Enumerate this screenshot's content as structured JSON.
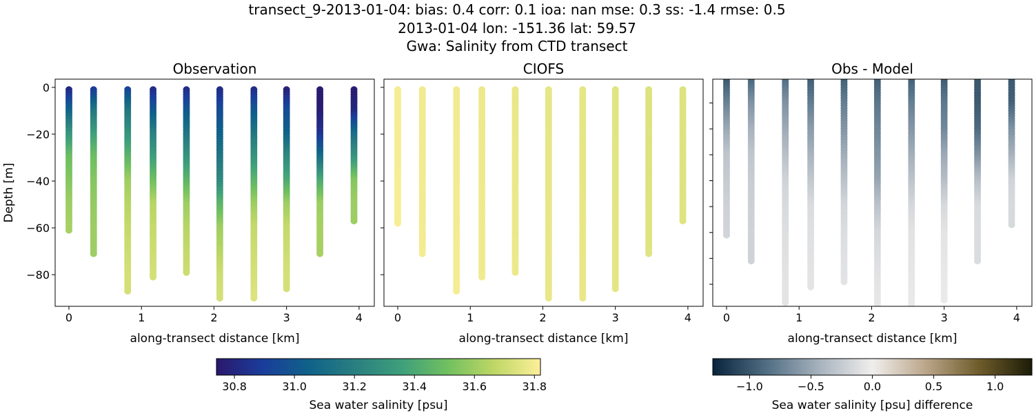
{
  "title_lines": [
    "transect_9-2013-01-04: bias: 0.4  corr: 0.1  ioa: nan  mse: 0.3  ss: -1.4  rmse: 0.5",
    "2013-01-04 lon: -151.36 lat: 59.57",
    "Gwa: Salinity from CTD transect"
  ],
  "chart_data": [
    {
      "type": "scatter",
      "title": "Observation",
      "xlabel": "along-transect distance [km]",
      "ylabel": "Depth [m]",
      "xlim": [
        -0.19,
        4.21
      ],
      "ylim": [
        -93.5,
        3.5
      ],
      "xticks": [
        0,
        1,
        2,
        3,
        4
      ],
      "yticks": [
        0,
        -20,
        -40,
        -60,
        -80
      ],
      "show_yticklabels": true,
      "colormap": "haline",
      "value_key": "obs",
      "profile_depths": [
        0,
        10,
        20,
        30,
        40,
        50,
        60,
        70,
        80,
        90
      ],
      "stations": [
        {
          "x": 0.0,
          "max_depth": 61,
          "obs": [
            30.78,
            31.05,
            31.3,
            31.5,
            31.55,
            31.6,
            31.62
          ]
        },
        {
          "x": 0.34,
          "max_depth": 71,
          "obs": [
            30.85,
            31.15,
            31.35,
            31.5,
            31.55,
            31.58,
            31.6,
            31.6
          ]
        },
        {
          "x": 0.81,
          "max_depth": 87,
          "obs": [
            30.9,
            31.15,
            31.3,
            31.45,
            31.6,
            31.65,
            31.68,
            31.7,
            31.72
          ]
        },
        {
          "x": 1.16,
          "max_depth": 81,
          "obs": [
            30.8,
            31.0,
            31.2,
            31.35,
            31.5,
            31.65,
            31.68,
            31.7,
            31.72
          ]
        },
        {
          "x": 1.62,
          "max_depth": 79,
          "obs": [
            30.8,
            31.0,
            31.15,
            31.3,
            31.45,
            31.6,
            31.65,
            31.68,
            31.7
          ]
        },
        {
          "x": 2.08,
          "max_depth": 90,
          "obs": [
            30.8,
            30.95,
            31.05,
            31.15,
            31.25,
            31.45,
            31.6,
            31.65,
            31.7,
            31.72
          ]
        },
        {
          "x": 2.55,
          "max_depth": 90,
          "obs": [
            30.8,
            31.0,
            31.15,
            31.3,
            31.45,
            31.6,
            31.68,
            31.7,
            31.72,
            31.74
          ]
        },
        {
          "x": 3.0,
          "max_depth": 86,
          "obs": [
            30.75,
            30.95,
            31.05,
            31.25,
            31.4,
            31.6,
            31.68,
            31.7,
            31.72
          ]
        },
        {
          "x": 3.46,
          "max_depth": 71,
          "obs": [
            30.75,
            30.76,
            30.85,
            31.1,
            31.4,
            31.6,
            31.62,
            31.62
          ]
        },
        {
          "x": 3.93,
          "max_depth": 57,
          "obs": [
            30.75,
            30.8,
            31.1,
            31.3,
            31.55,
            31.6
          ]
        }
      ]
    },
    {
      "type": "scatter",
      "title": "CIOFS",
      "xlabel": "along-transect distance [km]",
      "xlim": [
        -0.19,
        4.21
      ],
      "ylim": [
        -93.5,
        3.5
      ],
      "xticks": [
        0,
        1,
        2,
        3,
        4
      ],
      "yticks": [
        0,
        -20,
        -40,
        -60,
        -80
      ],
      "show_yticklabels": false,
      "colormap": "haline",
      "value_key": "model",
      "stations": [
        {
          "x": 0.0,
          "max_depth": 58,
          "model": 31.8
        },
        {
          "x": 0.34,
          "max_depth": 71,
          "model": 31.79
        },
        {
          "x": 0.81,
          "max_depth": 87,
          "model": 31.79
        },
        {
          "x": 1.16,
          "max_depth": 81,
          "model": 31.78
        },
        {
          "x": 1.62,
          "max_depth": 79,
          "model": 31.77
        },
        {
          "x": 2.08,
          "max_depth": 90,
          "model": 31.76
        },
        {
          "x": 2.55,
          "max_depth": 90,
          "model": 31.76
        },
        {
          "x": 3.0,
          "max_depth": 86,
          "model": 31.75
        },
        {
          "x": 3.46,
          "max_depth": 71,
          "model": 31.74
        },
        {
          "x": 3.93,
          "max_depth": 57,
          "model": 31.74
        }
      ]
    },
    {
      "type": "scatter",
      "title": "Obs - Model",
      "xlabel": "along-transect distance [km]",
      "xlim": [
        -0.19,
        4.21
      ],
      "ylim": [
        -88.5,
        -0.8
      ],
      "xticks": [
        0,
        1,
        2,
        3,
        4
      ],
      "yticks": [
        -10,
        -20,
        -30,
        -40,
        -50,
        -60,
        -70,
        -80
      ],
      "show_yticklabels": false,
      "colormap": "diff",
      "value_key": "difference"
    }
  ],
  "colorbars": [
    {
      "label": "Sea water salinity [psu]",
      "range": [
        30.74,
        31.82
      ],
      "ticks": [
        "30.8",
        "31.0",
        "31.2",
        "31.4",
        "31.6",
        "31.8"
      ],
      "colormap": "haline"
    },
    {
      "label": "Sea water salinity [psu] difference",
      "range": [
        -1.3,
        1.3
      ],
      "ticks": [
        "−1.0",
        "−0.5",
        "0.0",
        "0.5",
        "1.0"
      ],
      "colormap": "diff"
    }
  ],
  "colormaps": {
    "haline": [
      "#2a186c",
      "#1a3d9b",
      "#0f6289",
      "#2a7f80",
      "#3e9f7b",
      "#71c05f",
      "#bed766",
      "#fdef9a"
    ],
    "diff": [
      "#08243c",
      "#4f6d83",
      "#a7b2bd",
      "#f0eeed",
      "#bba68a",
      "#6f5c2b",
      "#1c1c08"
    ]
  }
}
